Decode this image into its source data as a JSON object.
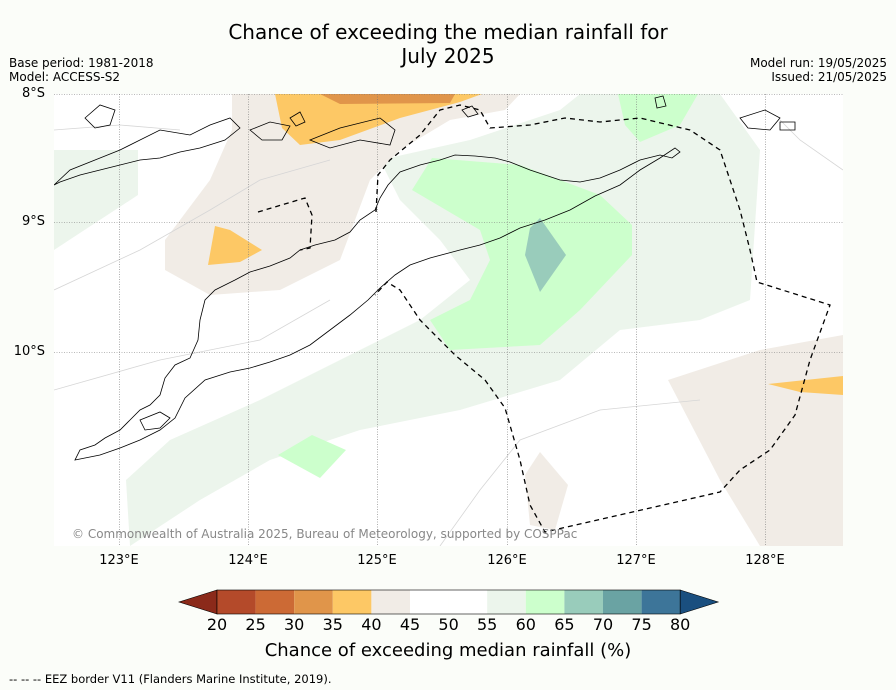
{
  "title": {
    "line1": "Chance of exceeding the median rainfall for",
    "line2": "July 2025"
  },
  "meta": {
    "base_period": "Base period: 1981-2018",
    "model": "Model: ACCESS-S2",
    "model_run": "Model run: 19/05/2025",
    "issued": "Issued: 21/05/2025"
  },
  "map": {
    "lat_labels": [
      "8°S",
      "9°S",
      "10°S"
    ],
    "lon_labels": [
      "123°E",
      "124°E",
      "125°E",
      "126°E",
      "127°E",
      "128°E"
    ],
    "copyright": "© Commonwealth of Australia 2025, Bureau of Meteorology, supported by COSPPac",
    "land_outline_color": "#000000",
    "eez_border_style": "dashed"
  },
  "colorbar": {
    "ticks": [
      "20",
      "25",
      "30",
      "35",
      "40",
      "45",
      "50",
      "55",
      "60",
      "65",
      "70",
      "75",
      "80"
    ],
    "colors": [
      "#8b2a1a",
      "#b44a2a",
      "#cc6a35",
      "#e0954a",
      "#fdc865",
      "#f1ece6",
      "#ffffff",
      "#ffffff",
      "#ecf5ec",
      "#ccffcc",
      "#99ccbb",
      "#6aa3a3",
      "#3d7599",
      "#1a4f7f"
    ],
    "title": "Chance of exceeding median rainfall (%)"
  },
  "footnote": "--  --  -- EEZ border V11 (Flanders Marine Institute, 2019)."
}
